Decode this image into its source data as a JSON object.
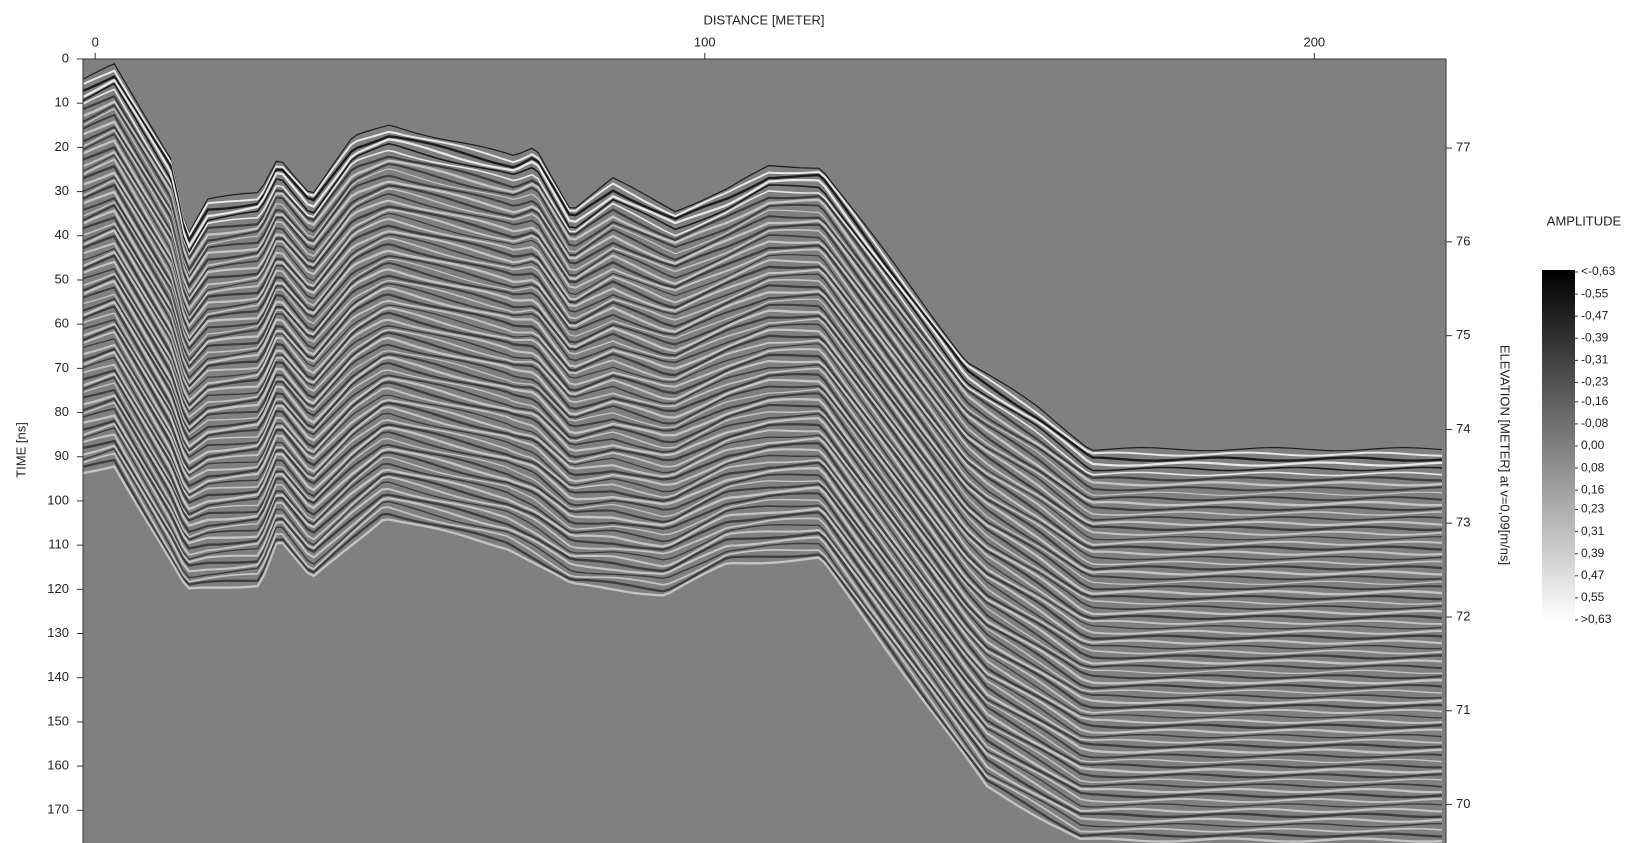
{
  "chart_data": {
    "type": "radargram",
    "x_label": "DISTANCE [METER]",
    "y_label": "TIME [ns]",
    "y2_label": "ELEVATION [METER] at v=0,09[m/ns]",
    "xlim": [
      -2,
      221.6
    ],
    "xticks": [
      0,
      100,
      200
    ],
    "ylim": [
      0,
      177.4
    ],
    "yticks": [
      0,
      10,
      20,
      30,
      40,
      50,
      60,
      70,
      80,
      90,
      100,
      110,
      120,
      130,
      140,
      150,
      160,
      170
    ],
    "y2lim": [
      69.59,
      77.95
    ],
    "y2ticks": [
      70,
      71,
      72,
      73,
      74,
      75,
      76,
      77
    ],
    "colorbar": {
      "title": "AMPLITUDE",
      "clim": [
        -0.63,
        0.63
      ],
      "colors": [
        "#000000",
        "#ffffff"
      ],
      "ticks": [
        {
          "value": -0.63,
          "label": "<-0,63"
        },
        {
          "value": -0.55,
          "label": "-0,55"
        },
        {
          "value": -0.47,
          "label": "-0,47"
        },
        {
          "value": -0.39,
          "label": "-0,39"
        },
        {
          "value": -0.31,
          "label": "-0,31"
        },
        {
          "value": -0.23,
          "label": "-0,23"
        },
        {
          "value": -0.16,
          "label": "-0,16"
        },
        {
          "value": -0.08,
          "label": "-0,08"
        },
        {
          "value": 0,
          "label": "0,00"
        },
        {
          "value": 0.08,
          "label": "0,08"
        },
        {
          "value": 0.16,
          "label": "0,16"
        },
        {
          "value": 0.23,
          "label": "0,23"
        },
        {
          "value": 0.31,
          "label": "0,31"
        },
        {
          "value": 0.39,
          "label": "0,39"
        },
        {
          "value": 0.47,
          "label": "0,47"
        },
        {
          "value": 0.55,
          "label": "0,55"
        },
        {
          "value": 0.63,
          "label": ">0,63"
        }
      ]
    }
  }
}
